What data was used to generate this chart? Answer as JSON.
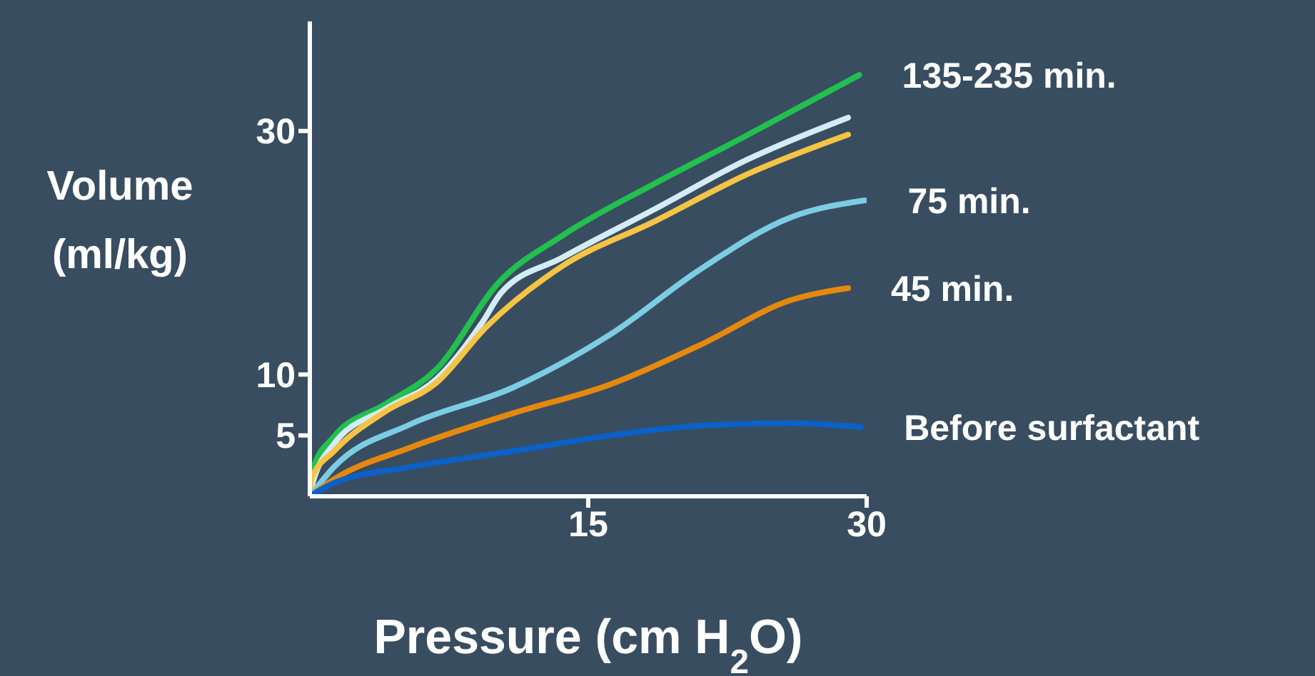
{
  "chart_data": {
    "type": "line",
    "xlabel": "Pressure (cm H$_{2}$O)",
    "ylabel": "Volume (ml/kg)",
    "xlim": [
      0,
      30
    ],
    "xticks": [
      15,
      30
    ],
    "ylim": [
      0,
      39
    ],
    "yticks": [
      5,
      10,
      30
    ],
    "series": [
      {
        "name": "135-235 min.",
        "color": "#22c04f",
        "x": [
          0,
          0.2,
          1.3,
          4.1,
          6.8,
          10.2,
          13.6,
          18.6,
          23.5,
          29.6
        ],
        "values": [
          0,
          2.4,
          4.9,
          7.6,
          10.4,
          17.6,
          21.4,
          25.7,
          29.6,
          34.6
        ]
      },
      {
        "color": "#d4ecf8",
        "x": [
          0,
          0.1,
          1.3,
          4.1,
          6.8,
          9.3,
          10.3,
          13.6,
          18.6,
          23.5,
          29
        ],
        "values": [
          0,
          0.8,
          4.3,
          7.2,
          9.6,
          14.3,
          16.7,
          19.6,
          23.6,
          27.6,
          31.1
        ]
      },
      {
        "color": "#f5c445",
        "x": [
          0,
          0.1,
          1.3,
          4.1,
          6.8,
          9.5,
          13.6,
          18.6,
          23.5,
          29
        ],
        "values": [
          0,
          1.5,
          3.7,
          7.0,
          9.3,
          13.9,
          18.9,
          22.6,
          26.4,
          29.7
        ]
      },
      {
        "name": "75 min.",
        "color": "#7ccde3",
        "x": [
          0,
          1.3,
          5.4,
          10.9,
          16.2,
          21,
          25.9,
          29.9
        ],
        "values": [
          0,
          2.4,
          5.9,
          8.9,
          13.3,
          18.6,
          22.9,
          24.3
        ]
      },
      {
        "name": "45 min.",
        "color": "#e5890e",
        "x": [
          0,
          1.3,
          5.4,
          10.9,
          16.2,
          21,
          25.9,
          29
        ],
        "values": [
          0,
          1.4,
          4.0,
          6.8,
          9.2,
          12.4,
          16.1,
          17.1
        ]
      },
      {
        "name": "Before surfactant",
        "color": "#0b61c8",
        "x": [
          0,
          1.3,
          5.4,
          10.9,
          16.2,
          21,
          25.9,
          29.7
        ],
        "values": [
          0,
          1.1,
          2.4,
          3.7,
          5.0,
          5.8,
          6.0,
          5.7
        ]
      }
    ]
  }
}
